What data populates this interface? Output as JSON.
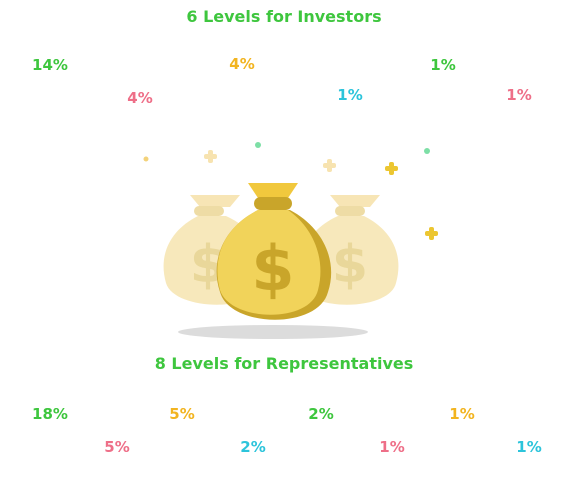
{
  "colors": {
    "green": "#3ec63e",
    "pink": "#ee6f88",
    "orange": "#f2b420",
    "cyan": "#2cc4db"
  },
  "investors": {
    "title": "6 Levels for Investors",
    "levels": [
      {
        "value": "14%",
        "color": "#3ec63e"
      },
      {
        "value": "4%",
        "color": "#ee6f88"
      },
      {
        "value": "4%",
        "color": "#f2b420"
      },
      {
        "value": "1%",
        "color": "#2cc4db"
      },
      {
        "value": "1%",
        "color": "#3ec63e"
      },
      {
        "value": "1%",
        "color": "#ee6f88"
      }
    ]
  },
  "representatives": {
    "title": "8 Levels for Representatives",
    "levels": [
      {
        "value": "18%",
        "color": "#3ec63e"
      },
      {
        "value": "5%",
        "color": "#ee6f88"
      },
      {
        "value": "5%",
        "color": "#f2b420"
      },
      {
        "value": "2%",
        "color": "#2cc4db"
      },
      {
        "value": "2%",
        "color": "#3ec63e"
      },
      {
        "value": "1%",
        "color": "#ee6f88"
      },
      {
        "value": "1%",
        "color": "#f2b420"
      },
      {
        "value": "1%",
        "color": "#2cc4db"
      }
    ]
  },
  "illustration": {
    "icon": "money-bags-icon"
  }
}
